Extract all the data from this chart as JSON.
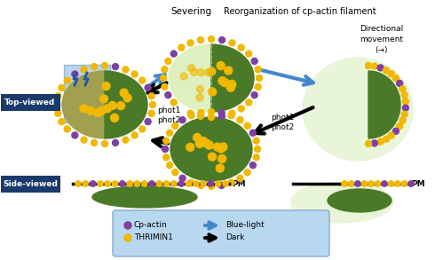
{
  "bg_color": "#ffffff",
  "dark_green": "#4a7a28",
  "light_green": "#c8e89a",
  "very_light_green": "#dff0c0",
  "pale_green": "#e8f5d8",
  "gold_yellow": "#f0b800",
  "purple": "#8040a0",
  "olive": "#a0a050",
  "blue_rect": "#b0cce8",
  "dark_blue_label": "#1a3a6b",
  "arrow_blue": "#4488cc",
  "label_blue_bg": "#b8d8f0",
  "top_label": "Top-viewed",
  "side_label": "Side-viewed",
  "severing_text": "Severing",
  "reorg_text": "Reorganization of cp-actin filament",
  "directional_text": "Directional\nmovement\n(→)",
  "phot1_phot2_left": "phot1\nphot2",
  "phot1_phot2_right": "phot1\nphot2",
  "pm_text": "PM",
  "legend_cpactin": "Cp-actin",
  "legend_thrimin": "THRIMIN1",
  "legend_bluelight": "Blue-light",
  "legend_dark": "Dark"
}
